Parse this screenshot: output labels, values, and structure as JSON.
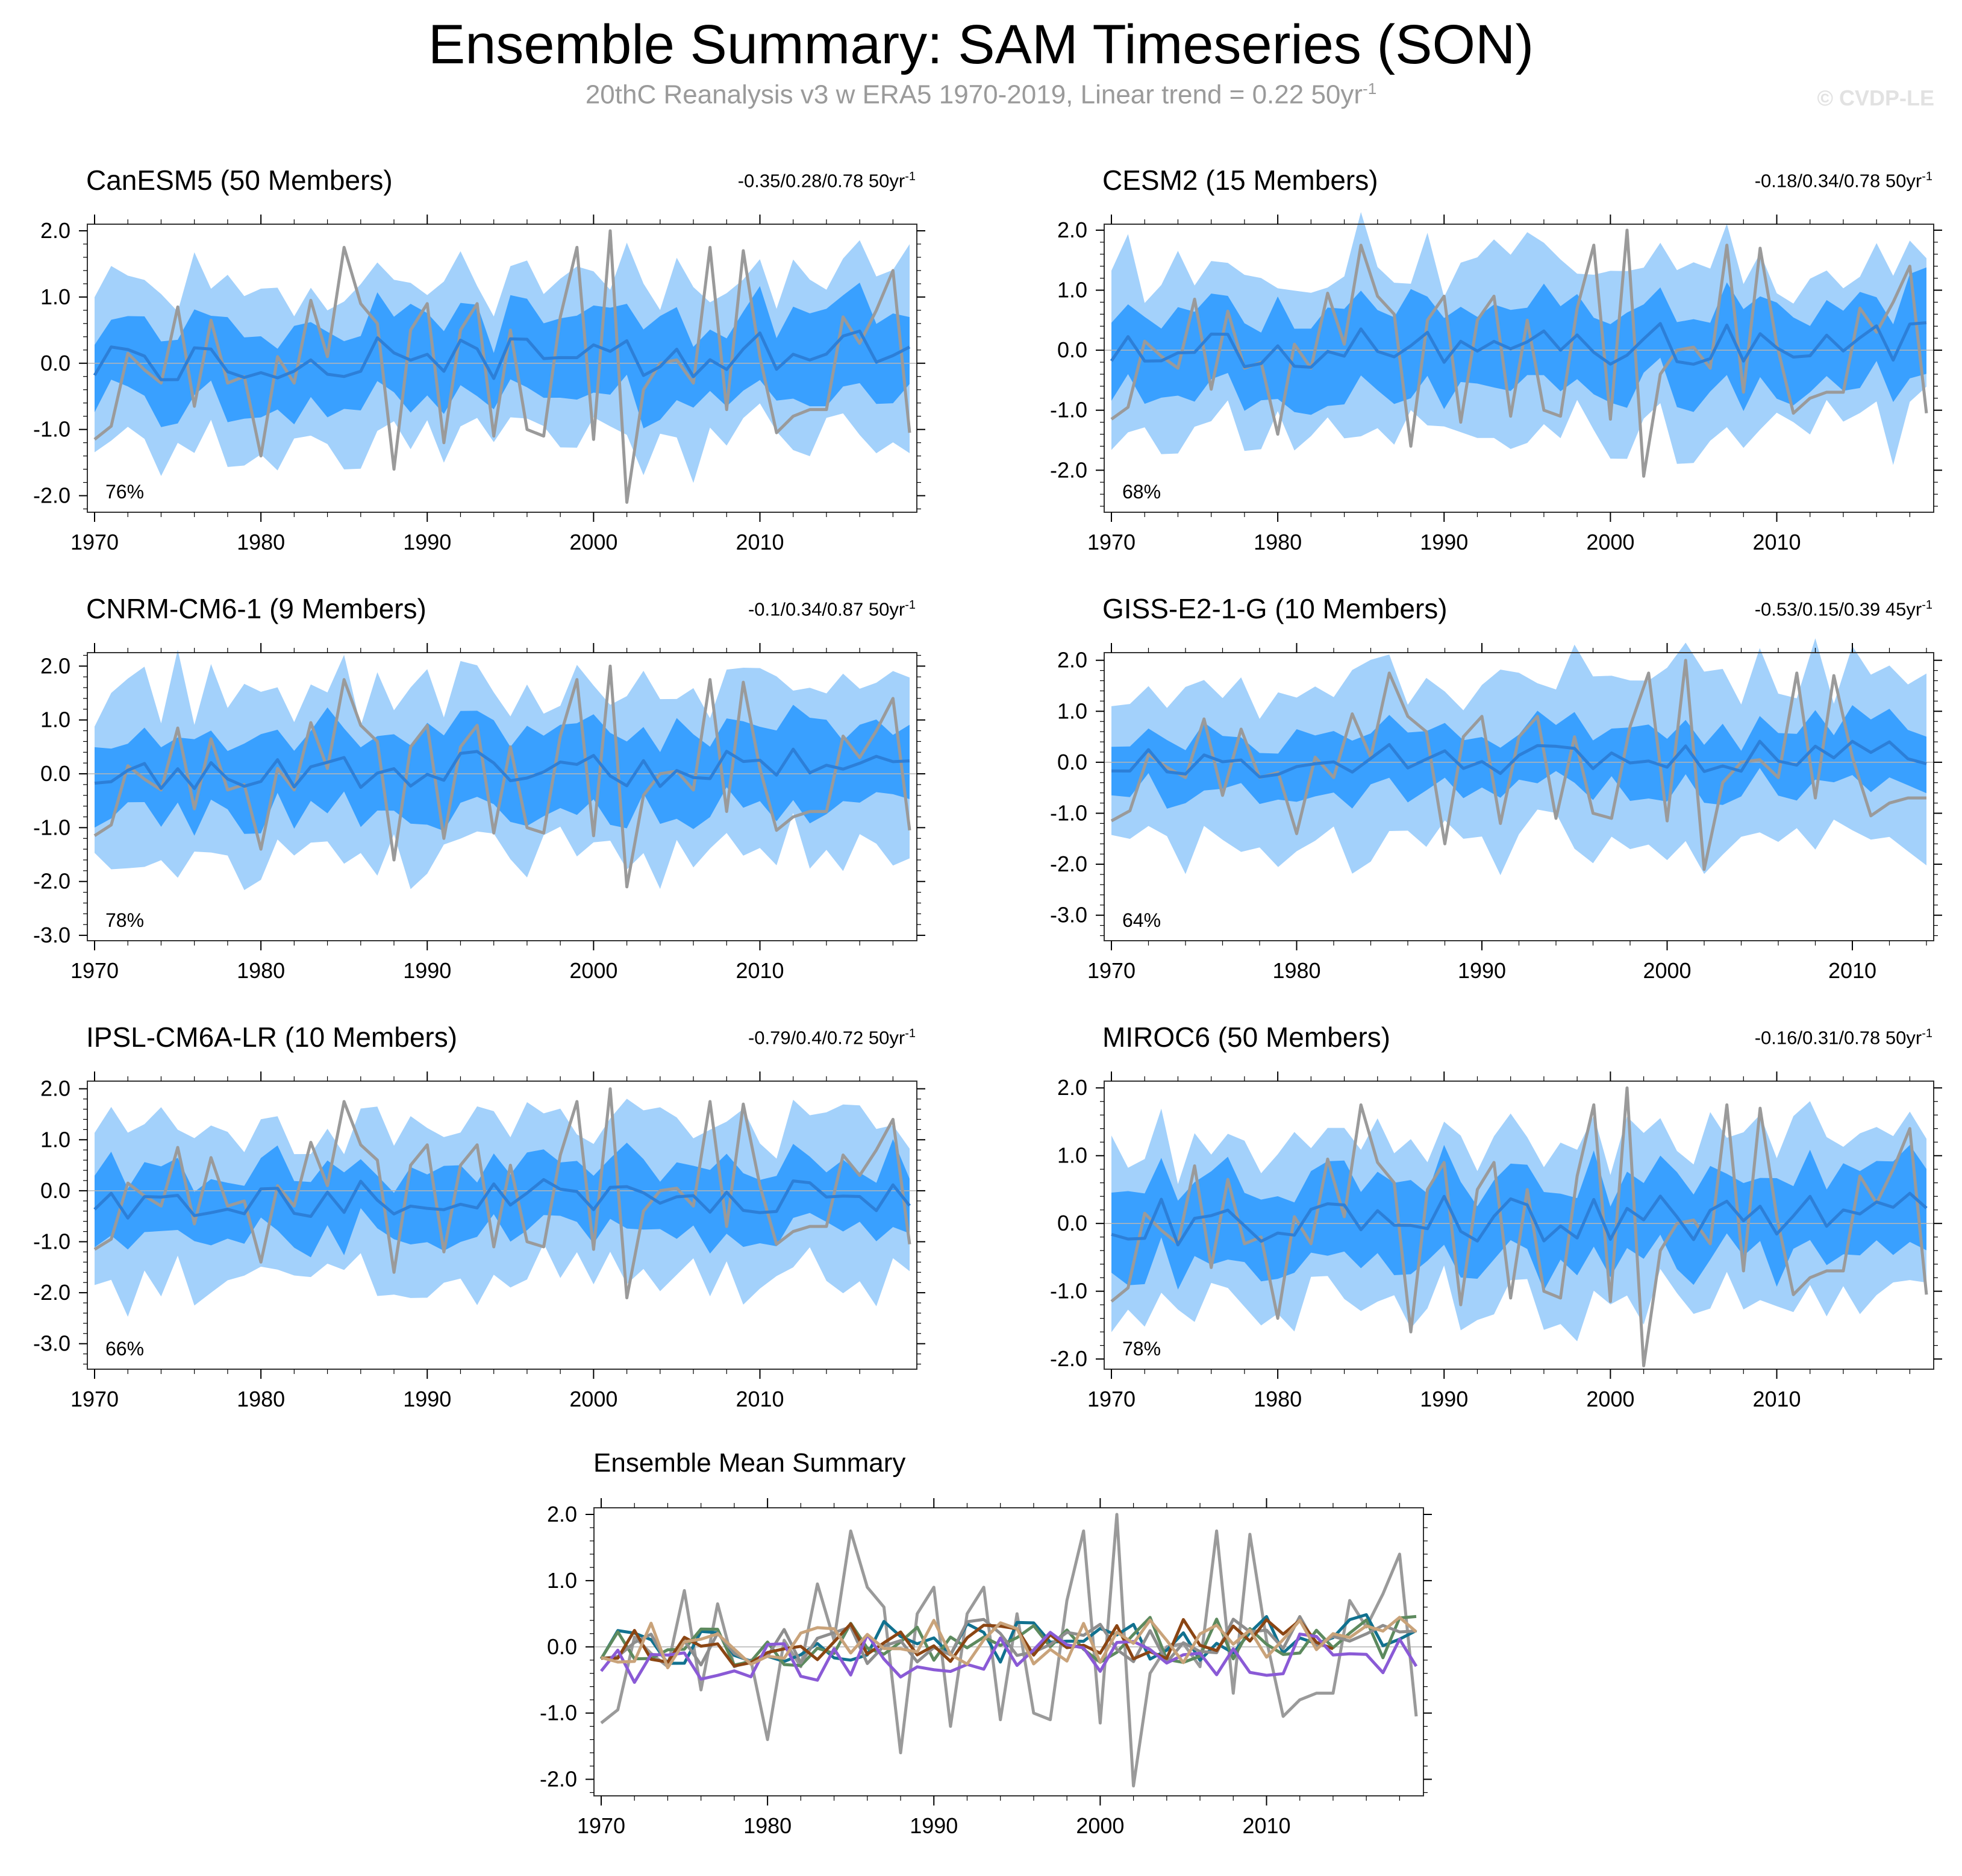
{
  "header": {
    "title": "Ensemble Summary: SAM Timeseries (SON)",
    "subtitle": "20thC Reanalysis v3 w ERA5 1970-2019, Linear trend = 0.22 50yr",
    "subtitle_sup": "-1",
    "watermark": "© CVDP-LE"
  },
  "colors": {
    "band_outer": "#a3d1fb",
    "band_inner": "#39a0ff",
    "ens_mean": "#2c7fd8",
    "obs": "#9a9a9a",
    "axis": "#000000"
  },
  "chart_data": [
    {
      "type": "line",
      "name": "CanESM5",
      "title": "CanESM5 (50 Members)",
      "title_color": "#11718f",
      "stats": "-0.35/0.28/0.78 50yr",
      "stats_sup": "-1",
      "percent": "76%",
      "xlim": [
        1970,
        2019
      ],
      "ylim": [
        -2.25,
        2.1
      ],
      "yticks": [
        2.0,
        1.0,
        0.0,
        -1.0,
        -2.0
      ],
      "ytick_labels": [
        "2.0",
        "1.0",
        "0.0",
        "-1.0",
        "-2.0"
      ],
      "xticks": [
        1970,
        1980,
        1990,
        2000,
        2010
      ],
      "seed": 11,
      "band_center": 0.0,
      "inner_half": 0.62,
      "outer_half": 1.15
    },
    {
      "type": "line",
      "name": "CESM2",
      "title": "CESM2 (15 Members)",
      "title_color": "#5d8a5e",
      "stats": "-0.18/0.34/0.78 50yr",
      "stats_sup": "-1",
      "percent": "68%",
      "xlim": [
        1970,
        2019
      ],
      "ylim": [
        -2.7,
        2.1
      ],
      "yticks": [
        2.0,
        1.0,
        0.0,
        -1.0,
        -2.0
      ],
      "ytick_labels": [
        "2.0",
        "1.0",
        "0.0",
        "-1.0",
        "-2.0"
      ],
      "xticks": [
        1970,
        1980,
        1990,
        2000,
        2010
      ],
      "seed": 23,
      "band_center": 0.0,
      "inner_half": 0.7,
      "outer_half": 1.3
    },
    {
      "type": "line",
      "name": "CNRM-CM6-1",
      "title": "CNRM-CM6-1 (9 Members)",
      "title_color": "#8e8e8e",
      "stats": "-0.1/0.34/0.87 50yr",
      "stats_sup": "-1",
      "percent": "78%",
      "xlim": [
        1970,
        2019
      ],
      "ylim": [
        -3.1,
        2.25
      ],
      "yticks": [
        2.0,
        1.0,
        0.0,
        -1.0,
        -2.0,
        -3.0
      ],
      "ytick_labels": [
        "2.0",
        "1.0",
        "0.0",
        "-1.0",
        "-2.0",
        "-3.0"
      ],
      "xticks": [
        1970,
        1980,
        1990,
        2000,
        2010
      ],
      "seed": 37,
      "band_center": 0.0,
      "inner_half": 0.75,
      "outer_half": 1.45
    },
    {
      "type": "line",
      "name": "GISS-E2-1-G",
      "title": "GISS-E2-1-G (10 Members)",
      "title_color": "#8b4513",
      "stats": "-0.53/0.15/0.39 45yr",
      "stats_sup": "-1",
      "percent": "64%",
      "xlim": [
        1970,
        2014
      ],
      "ylim": [
        -3.5,
        2.15
      ],
      "yticks": [
        2.0,
        1.0,
        0.0,
        -1.0,
        -2.0,
        -3.0
      ],
      "ytick_labels": [
        "2.0",
        "1.0",
        "0.0",
        "-1.0",
        "-2.0",
        "-3.0"
      ],
      "xticks": [
        1970,
        1980,
        1990,
        2000,
        2010
      ],
      "seed": 53,
      "band_center": 0.0,
      "inner_half": 0.6,
      "outer_half": 1.45
    },
    {
      "type": "line",
      "name": "IPSL-CM6A-LR",
      "title": "IPSL-CM6A-LR (10 Members)",
      "title_color": "#8a5ad6",
      "stats": "-0.79/0.4/0.72 50yr",
      "stats_sup": "-1",
      "percent": "66%",
      "xlim": [
        1970,
        2019
      ],
      "ylim": [
        -3.5,
        2.15
      ],
      "yticks": [
        2.0,
        1.0,
        0.0,
        -1.0,
        -2.0,
        -3.0
      ],
      "ytick_labels": [
        "2.0",
        "1.0",
        "0.0",
        "-1.0",
        "-2.0",
        "-3.0"
      ],
      "xticks": [
        1970,
        1980,
        1990,
        2000,
        2010
      ],
      "seed": 71,
      "band_center": -0.2,
      "inner_half": 0.65,
      "outer_half": 1.4
    },
    {
      "type": "line",
      "name": "MIROC6",
      "title": "MIROC6 (50 Members)",
      "title_color": "#c9a37a",
      "stats": "-0.16/0.31/0.78 50yr",
      "stats_sup": "-1",
      "percent": "78%",
      "xlim": [
        1970,
        2019
      ],
      "ylim": [
        -2.15,
        2.1
      ],
      "yticks": [
        2.0,
        1.0,
        0.0,
        -1.0,
        -2.0
      ],
      "ytick_labels": [
        "2.0",
        "1.0",
        "0.0",
        "-1.0",
        "-2.0"
      ],
      "xticks": [
        1970,
        1980,
        1990,
        2000,
        2010
      ],
      "seed": 89,
      "band_center": 0.0,
      "inner_half": 0.6,
      "outer_half": 1.15
    },
    {
      "type": "line",
      "name": "Ensemble Mean Summary",
      "title": "Ensemble Mean Summary",
      "title_color": "#000000",
      "xlim": [
        1970,
        2019
      ],
      "ylim": [
        -2.25,
        2.1
      ],
      "yticks": [
        2.0,
        1.0,
        0.0,
        -1.0,
        -2.0
      ],
      "ytick_labels": [
        "2.0",
        "1.0",
        "0.0",
        "-1.0",
        "-2.0"
      ],
      "xticks": [
        1970,
        1980,
        1990,
        2000,
        2010
      ],
      "series_colors": [
        "#11718f",
        "#5d8a5e",
        "#8e8e8e",
        "#8b4513",
        "#8a5ad6",
        "#c9a37a"
      ]
    }
  ],
  "observed": {
    "name": "20thC Reanalysis v3 w ERA5",
    "years": [
      1970,
      1971,
      1972,
      1973,
      1974,
      1975,
      1976,
      1977,
      1978,
      1979,
      1980,
      1981,
      1982,
      1983,
      1984,
      1985,
      1986,
      1987,
      1988,
      1989,
      1990,
      1991,
      1992,
      1993,
      1994,
      1995,
      1996,
      1997,
      1998,
      1999,
      2000,
      2001,
      2002,
      2003,
      2004,
      2005,
      2006,
      2007,
      2008,
      2009,
      2010,
      2011,
      2012,
      2013,
      2014,
      2015,
      2016,
      2017,
      2018,
      2019
    ],
    "values": [
      -1.15,
      -0.95,
      0.15,
      -0.1,
      -0.3,
      0.85,
      -0.65,
      0.65,
      -0.3,
      -0.2,
      -1.4,
      0.1,
      -0.3,
      0.95,
      0.1,
      1.75,
      0.9,
      0.6,
      -1.6,
      0.5,
      0.9,
      -1.2,
      0.5,
      0.9,
      -1.1,
      0.5,
      -1.0,
      -1.1,
      0.7,
      1.75,
      -1.15,
      2.0,
      -2.1,
      -0.4,
      0.0,
      0.05,
      -0.3,
      1.75,
      -0.7,
      1.7,
      0.1,
      -1.05,
      -0.8,
      -0.7,
      -0.7,
      0.7,
      0.3,
      0.8,
      1.4,
      -1.05
    ]
  }
}
